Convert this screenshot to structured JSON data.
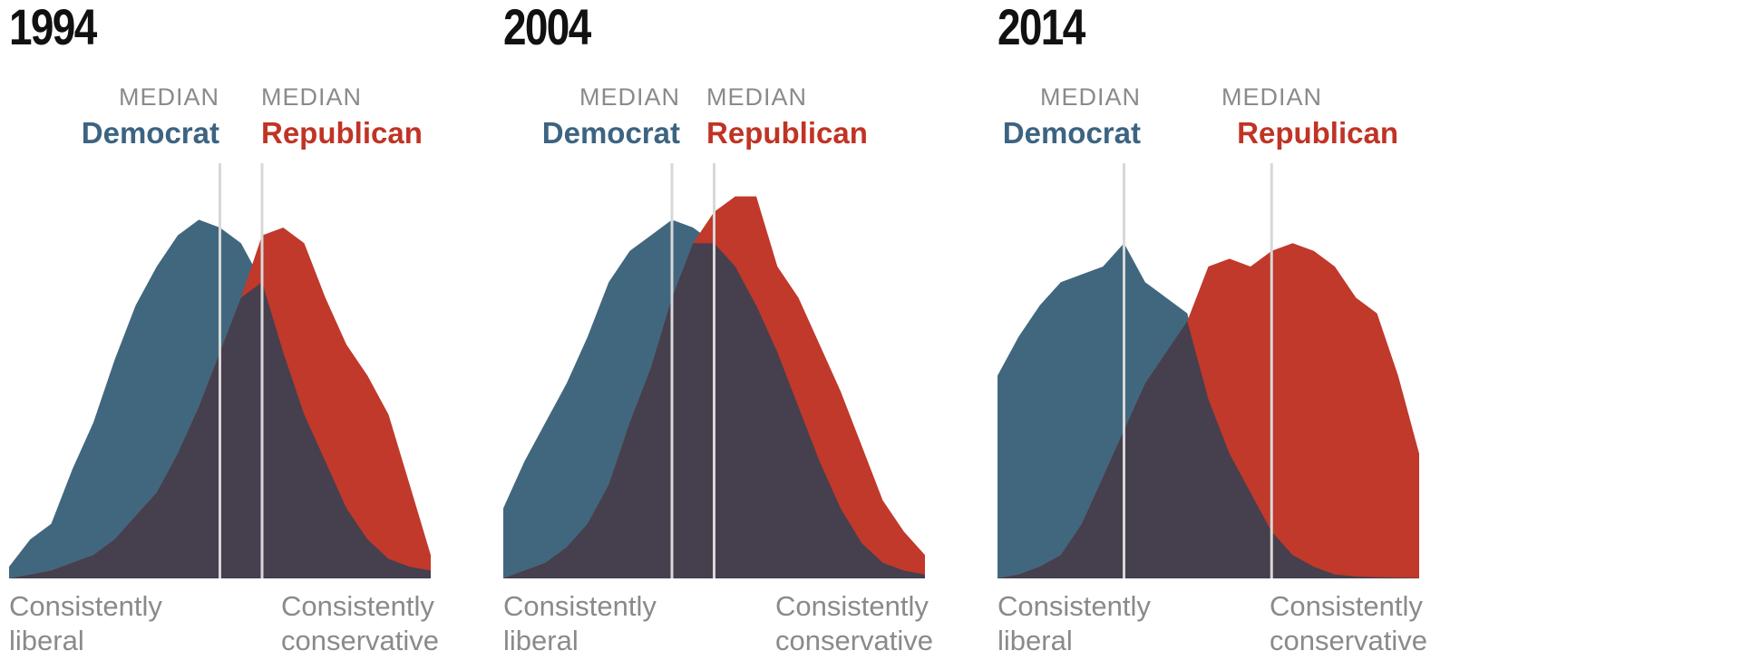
{
  "chart_data": [
    {
      "type": "area",
      "title": "1994",
      "median_label": "MEDIAN",
      "series": [
        {
          "name": "Democrat",
          "color": "#41677f",
          "values": [
            3,
            10,
            14,
            28,
            40,
            56,
            70,
            80,
            88,
            92,
            90,
            86,
            76,
            58,
            42,
            30,
            18,
            10,
            5,
            3,
            2
          ]
        },
        {
          "name": "Republican",
          "color": "#c0392b",
          "values": [
            0,
            1,
            2,
            4,
            6,
            10,
            16,
            22,
            32,
            44,
            58,
            72,
            88,
            90,
            86,
            72,
            60,
            52,
            42,
            24,
            6
          ]
        }
      ],
      "medians": {
        "Democrat": 0.5,
        "Republican": 0.6
      },
      "axis_left": [
        "Consistently",
        "liberal"
      ],
      "axis_right": [
        "Consistently",
        "conservative"
      ]
    },
    {
      "type": "area",
      "title": "2004",
      "median_label": "MEDIAN",
      "series": [
        {
          "name": "Democrat",
          "color": "#41677f",
          "values": [
            18,
            30,
            40,
            50,
            62,
            76,
            84,
            88,
            92,
            90,
            86,
            80,
            70,
            58,
            44,
            30,
            18,
            9,
            4,
            2,
            1
          ]
        },
        {
          "name": "Republican",
          "color": "#c0392b",
          "values": [
            0,
            2,
            4,
            8,
            14,
            24,
            40,
            54,
            72,
            86,
            94,
            98,
            98,
            80,
            72,
            60,
            48,
            34,
            20,
            12,
            6
          ]
        }
      ],
      "medians": {
        "Democrat": 0.4,
        "Republican": 0.5
      },
      "axis_left": [
        "Consistently",
        "liberal"
      ],
      "axis_right": [
        "Consistently",
        "conservative"
      ]
    },
    {
      "type": "area",
      "title": "2014",
      "median_label": "MEDIAN",
      "series": [
        {
          "name": "Democrat",
          "color": "#41677f",
          "values": [
            52,
            62,
            70,
            76,
            78,
            80,
            86,
            76,
            72,
            68,
            46,
            32,
            22,
            12,
            6,
            3,
            1,
            0.5,
            0.3,
            0.2,
            0.1
          ]
        },
        {
          "name": "Republican",
          "color": "#c0392b",
          "values": [
            0,
            1,
            3,
            6,
            14,
            26,
            38,
            50,
            58,
            66,
            80,
            82,
            80,
            84,
            86,
            84,
            80,
            72,
            68,
            52,
            32
          ]
        }
      ],
      "medians": {
        "Democrat": 0.3,
        "Republican": 0.65
      },
      "axis_left": [
        "Consistently",
        "liberal"
      ],
      "axis_right": [
        "Consistently",
        "conservative"
      ]
    }
  ]
}
